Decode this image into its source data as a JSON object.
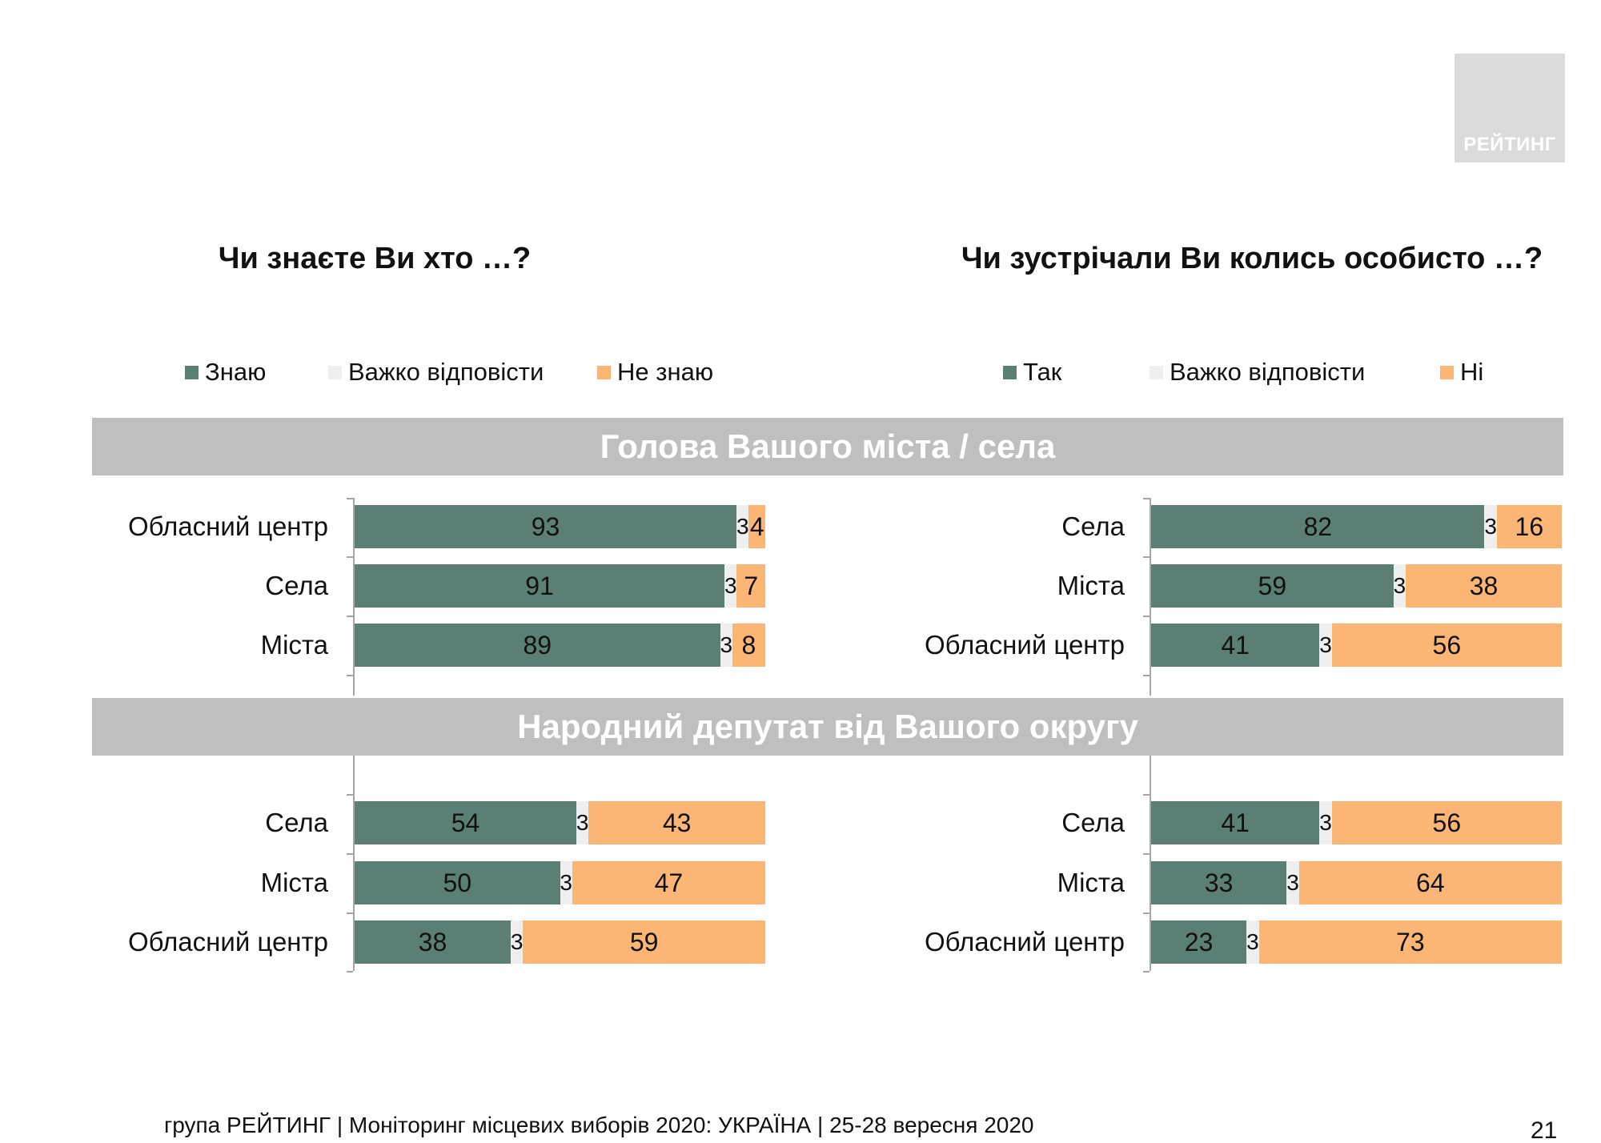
{
  "logo_text": "РЕЙТИНГ",
  "colors": {
    "yes": "#5b7f74",
    "hard": "#efefef",
    "no": "#fbb574",
    "band": "#bfbfbf"
  },
  "left": {
    "title": "Чи знаєте Ви хто …?",
    "legend": [
      "Знаю",
      "Важко відповісти",
      "Не знаю"
    ]
  },
  "right": {
    "title": "Чи зустрічали Ви колись особисто …?",
    "legend": [
      "Так",
      "Важко відповісти",
      "Ні"
    ]
  },
  "bands": [
    "Голова Вашого міста / села",
    "Народний депутат від Вашого округу"
  ],
  "chart_data": [
    {
      "type": "bar",
      "orientation": "horizontal",
      "stacked": true,
      "title": "Голова Вашого міста / села",
      "question": "Чи знаєте Ви хто …?",
      "categories": [
        "Обласний центр",
        "Села",
        "Міста"
      ],
      "series": [
        {
          "name": "Знаю",
          "values": [
            93,
            91,
            89
          ]
        },
        {
          "name": "Важко відповісти",
          "values": [
            3,
            3,
            3
          ]
        },
        {
          "name": "Не знаю",
          "values": [
            4,
            7,
            8
          ]
        }
      ]
    },
    {
      "type": "bar",
      "orientation": "horizontal",
      "stacked": true,
      "title": "Голова Вашого міста / села",
      "question": "Чи зустрічали Ви колись особисто …?",
      "categories": [
        "Села",
        "Міста",
        "Обласний центр"
      ],
      "series": [
        {
          "name": "Так",
          "values": [
            82,
            59,
            41
          ]
        },
        {
          "name": "Важко відповісти",
          "values": [
            3,
            3,
            3
          ]
        },
        {
          "name": "Ні",
          "values": [
            16,
            38,
            56
          ]
        }
      ]
    },
    {
      "type": "bar",
      "orientation": "horizontal",
      "stacked": true,
      "title": "Народний депутат від Вашого округу",
      "question": "Чи знаєте Ви хто …?",
      "categories": [
        "Села",
        "Міста",
        "Обласний центр"
      ],
      "series": [
        {
          "name": "Знаю",
          "values": [
            54,
            50,
            38
          ]
        },
        {
          "name": "Важко відповісти",
          "values": [
            3,
            3,
            3
          ]
        },
        {
          "name": "Не знаю",
          "values": [
            43,
            47,
            59
          ]
        }
      ]
    },
    {
      "type": "bar",
      "orientation": "horizontal",
      "stacked": true,
      "title": "Народний депутат від Вашого округу",
      "question": "Чи зустрічали Ви колись особисто …?",
      "categories": [
        "Села",
        "Міста",
        "Обласний центр"
      ],
      "series": [
        {
          "name": "Так",
          "values": [
            41,
            33,
            23
          ]
        },
        {
          "name": "Важко відповісти",
          "values": [
            3,
            3,
            3
          ]
        },
        {
          "name": "Ні",
          "values": [
            56,
            64,
            73
          ]
        }
      ]
    }
  ],
  "footer": "група РЕЙТИНГ | Моніторинг місцевих виборів 2020: УКРАЇНА | 25-28 вересня 2020",
  "page_number": "21"
}
